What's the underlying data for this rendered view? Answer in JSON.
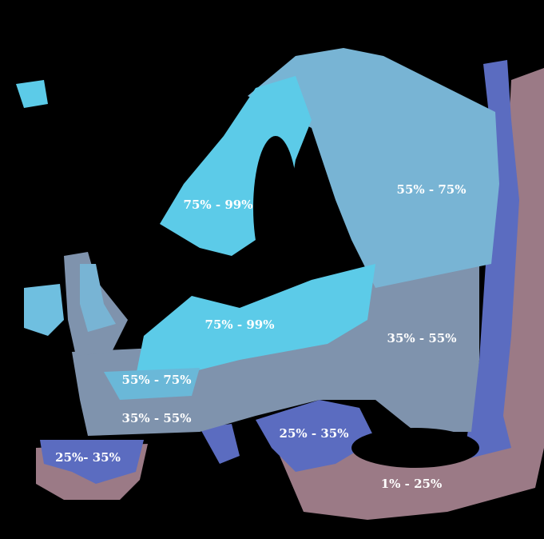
{
  "regions": [
    {
      "label": "75% - 99%"
    },
    {
      "label": "55% - 75%"
    },
    {
      "label": "75% - 99%"
    },
    {
      "label": "35% - 55%"
    },
    {
      "label": "55% - 75%"
    },
    {
      "label": "35% - 55%"
    },
    {
      "label": "25% - 35%"
    },
    {
      "label": "25%- 35%"
    },
    {
      "label": "1% - 25%"
    }
  ]
}
